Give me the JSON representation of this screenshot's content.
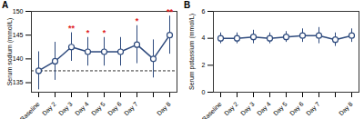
{
  "chart_data": [
    {
      "type": "line",
      "title": "A",
      "y_label": "Serum sodium (mmol/L)",
      "categories": [
        "Baseline",
        "Day 2",
        "Day 3",
        "Day 4",
        "Day 5",
        "Day 6",
        "Day 7",
        null,
        "Day 8"
      ],
      "series": [
        {
          "name": "Serum sodium",
          "color": "#2e4a7d",
          "marker": "circle",
          "values": [
            137.5,
            139.5,
            142.5,
            141.5,
            141.5,
            141.5,
            143,
            140,
            145
          ],
          "errors": [
            4,
            4,
            3,
            3,
            3,
            3,
            4,
            4,
            4
          ],
          "annotations": [
            null,
            null,
            "**",
            "*",
            "*",
            null,
            "*",
            null,
            "**"
          ]
        }
      ],
      "reference_line": 137.5,
      "ylim": [
        133,
        150
      ],
      "yticks": [
        135,
        140,
        145,
        150
      ]
    },
    {
      "type": "line",
      "title": "B",
      "y_label": "Serum potassium (mmol/L)",
      "categories": [
        "Baseline",
        "Day 2",
        "Day 3",
        "Day 4",
        "Day 5",
        "Day 6",
        "Day 7",
        null,
        "Day 8"
      ],
      "series": [
        {
          "name": "Serum potassium",
          "color": "#2e4a7d",
          "marker": "circle",
          "values": [
            4.0,
            4.0,
            4.1,
            4.0,
            4.1,
            4.2,
            4.2,
            3.9,
            4.2
          ],
          "errors": [
            0.4,
            0.4,
            0.5,
            0.4,
            0.4,
            0.5,
            0.6,
            0.5,
            0.5
          ]
        }
      ],
      "ylim": [
        0,
        6
      ],
      "yticks": [
        0,
        2,
        4,
        6
      ]
    }
  ]
}
